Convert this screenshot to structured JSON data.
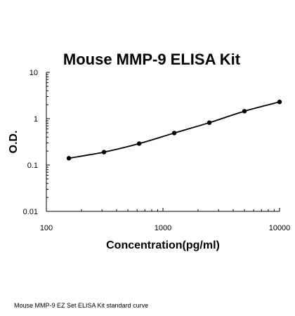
{
  "chart_data": {
    "type": "line",
    "title": "Mouse MMP-9 ELISA Kit",
    "xlabel": "Concentration(pg/ml)",
    "ylabel": "O.D.",
    "xscale": "log",
    "yscale": "log",
    "xlim": [
      100,
      10000
    ],
    "ylim": [
      0.01,
      10
    ],
    "x_ticks": [
      100,
      1000,
      10000
    ],
    "x_tick_labels": [
      "100",
      "1000",
      "10000"
    ],
    "y_ticks": [
      0.01,
      0.1,
      1,
      10
    ],
    "y_tick_labels": [
      "0.01",
      "0.1",
      "1",
      "10"
    ],
    "grid": false,
    "legend": "none",
    "series": [
      {
        "x": [
          156,
          312,
          625,
          1250,
          2500,
          5000,
          10000
        ],
        "y": [
          0.14,
          0.19,
          0.29,
          0.49,
          0.82,
          1.45,
          2.3
        ]
      }
    ],
    "colors": {
      "line": "#000000",
      "marker": "#000000",
      "axis": "#000000"
    }
  },
  "caption": "Mouse MMP-9 EZ Set ELISA Kit standard curve"
}
